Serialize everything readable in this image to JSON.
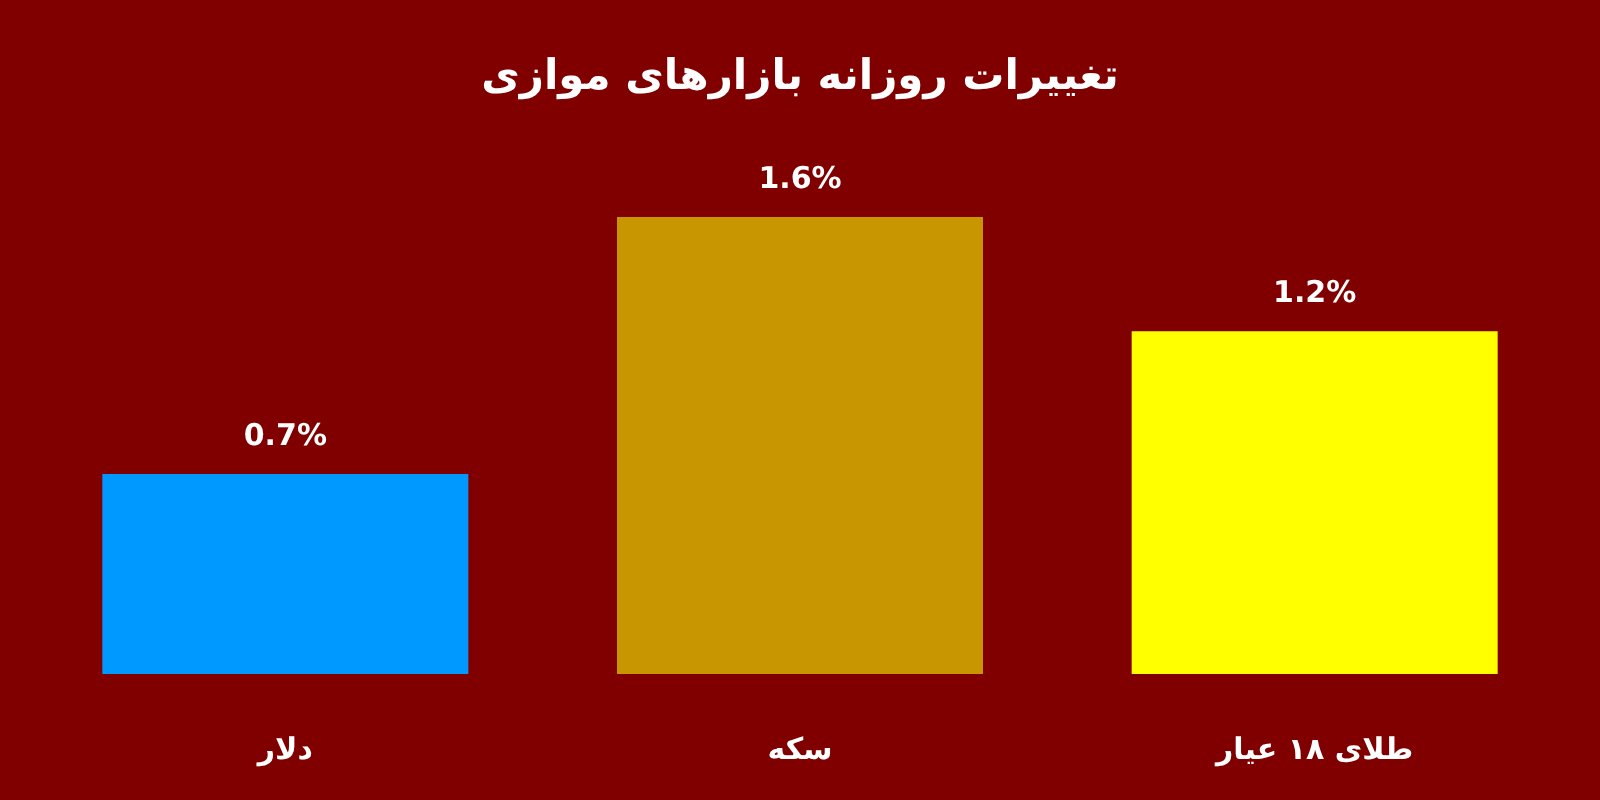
{
  "chart_data": {
    "type": "bar",
    "title": "تغییرات روزانه بازارهای موازی",
    "categories": [
      "دلار",
      "سکه",
      "طلای ۱۸ عیار"
    ],
    "values": [
      0.7,
      1.6,
      1.2
    ],
    "colors": [
      "#0099ff",
      "#c89600",
      "#ffff00"
    ],
    "value_labels": [
      "0.7%",
      "1.6%",
      "1.2%"
    ]
  }
}
